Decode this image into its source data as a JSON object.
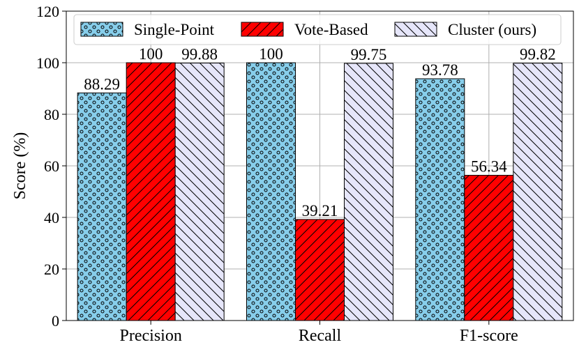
{
  "chart_data": {
    "type": "bar",
    "title": "",
    "xlabel": "",
    "ylabel": "Score (%)",
    "ylim": [
      0,
      120
    ],
    "yticks": [
      0,
      20,
      40,
      60,
      80,
      100,
      120
    ],
    "grid": true,
    "legend_position": "top-center",
    "categories": [
      "Precision",
      "Recall",
      "F1-score"
    ],
    "series": [
      {
        "name": "Single-Point",
        "values": [
          88.29,
          100,
          93.78
        ],
        "labels": [
          "88.29",
          "100",
          "93.78"
        ],
        "color": "#87ceeb",
        "pattern": "dots"
      },
      {
        "name": "Vote-Based",
        "values": [
          100,
          39.21,
          56.34
        ],
        "labels": [
          "100",
          "39.21",
          "56.34"
        ],
        "color": "#ff0000",
        "pattern": "forward-hatch"
      },
      {
        "name": "Cluster (ours)",
        "values": [
          99.88,
          99.75,
          99.82
        ],
        "labels": [
          "99.88",
          "99.75",
          "99.82"
        ],
        "color": "#e6e6fa",
        "pattern": "back-hatch"
      }
    ]
  }
}
